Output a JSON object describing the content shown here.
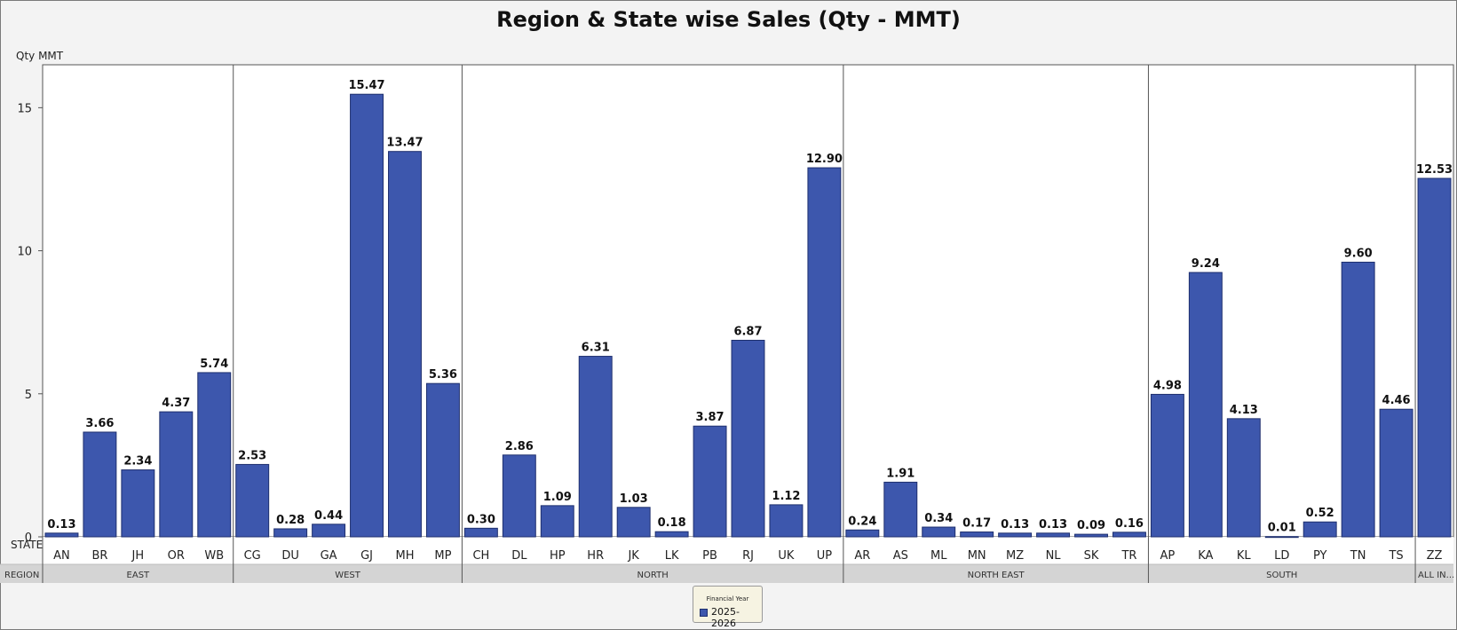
{
  "chart_data": {
    "type": "bar",
    "title": "Region & State wise Sales (Qty - MMT)",
    "ylabel": "Qty MMT",
    "ylim": [
      0,
      16.5
    ],
    "yticks": [
      0,
      5,
      10,
      15
    ],
    "x_row_labels": {
      "state": "STATE",
      "region": "REGION"
    },
    "grid": false,
    "legend": {
      "title": "Financial Year",
      "position": "bottom-center"
    },
    "series": [
      {
        "name": "2025-2026",
        "color": "#3d57ad"
      }
    ],
    "regions": [
      {
        "name": "EAST",
        "states": [
          "AN",
          "BR",
          "JH",
          "OR",
          "WB"
        ],
        "values": [
          0.13,
          3.66,
          2.34,
          4.37,
          5.74
        ],
        "value_labels": [
          "0.13",
          "3.66",
          "2.34",
          "4.37",
          "5.74"
        ]
      },
      {
        "name": "WEST",
        "states": [
          "CG",
          "DU",
          "GA",
          "GJ",
          "MH",
          "MP"
        ],
        "values": [
          2.53,
          0.28,
          0.44,
          15.47,
          13.47,
          5.36
        ],
        "value_labels": [
          "2.53",
          "0.28",
          "0.44",
          "15.47",
          "13.47",
          "5.36"
        ]
      },
      {
        "name": "NORTH",
        "states": [
          "CH",
          "DL",
          "HP",
          "HR",
          "JK",
          "LK",
          "PB",
          "RJ",
          "UK",
          "UP"
        ],
        "values": [
          0.3,
          2.86,
          1.09,
          6.31,
          1.03,
          0.18,
          3.87,
          6.87,
          1.12,
          12.9
        ],
        "value_labels": [
          "0.30",
          "2.86",
          "1.09",
          "6.31",
          "1.03",
          "0.18",
          "3.87",
          "6.87",
          "1.12",
          "12.90"
        ]
      },
      {
        "name": "NORTH EAST",
        "states": [
          "AR",
          "AS",
          "ML",
          "MN",
          "MZ",
          "NL",
          "SK",
          "TR"
        ],
        "values": [
          0.24,
          1.91,
          0.34,
          0.17,
          0.13,
          0.13,
          0.09,
          0.16
        ],
        "value_labels": [
          "0.24",
          "1.91",
          "0.34",
          "0.17",
          "0.13",
          "0.13",
          "0.09",
          "0.16"
        ]
      },
      {
        "name": "SOUTH",
        "states": [
          "AP",
          "KA",
          "KL",
          "LD",
          "PY",
          "TN",
          "TS"
        ],
        "values": [
          4.98,
          9.24,
          4.13,
          0.01,
          0.52,
          9.6,
          4.46
        ],
        "value_labels": [
          "4.98",
          "9.24",
          "4.13",
          "0.01",
          "0.52",
          "9.60",
          "4.46"
        ]
      },
      {
        "name": "ALL IN...",
        "states": [
          "ZZ"
        ],
        "values": [
          12.53
        ],
        "value_labels": [
          "12.53"
        ]
      }
    ]
  }
}
